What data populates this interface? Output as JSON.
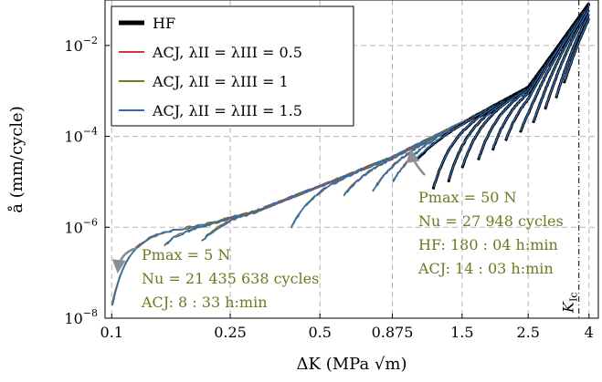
{
  "chart_data": {
    "type": "line",
    "x_scale": "log",
    "y_scale": "log",
    "xlabel": "ΔK (MPa √m)",
    "ylabel": "å (mm/cycle)",
    "xlim": [
      0.095,
      4.3
    ],
    "ylim": [
      1e-08,
      0.1
    ],
    "grid": true,
    "legend_position": "top-left",
    "x_ticks": [
      {
        "value": 0.1,
        "label": "0.1"
      },
      {
        "value": 0.25,
        "label": "0.25"
      },
      {
        "value": 0.5,
        "label": "0.5"
      },
      {
        "value": 0.875,
        "label": "0.875"
      },
      {
        "value": 1.5,
        "label": "1.5"
      },
      {
        "value": 2.5,
        "label": "2.5"
      },
      {
        "value": 4,
        "label": "4"
      }
    ],
    "y_ticks": [
      {
        "value": 1e-08,
        "base": "10",
        "exp": "−8"
      },
      {
        "value": 1e-06,
        "base": "10",
        "exp": "−6"
      },
      {
        "value": 0.0001,
        "base": "10",
        "exp": "−4"
      },
      {
        "value": 0.01,
        "base": "10",
        "exp": "−2"
      }
    ],
    "series": [
      {
        "name": "HF",
        "color": "#000000"
      },
      {
        "name": "ACJ, λII = λIII = 0.5",
        "color": "#d03a2a"
      },
      {
        "name": "ACJ, λII = λIII = 1",
        "color": "#6b7a1f"
      },
      {
        "name": "ACJ, λII = λIII = 1.5",
        "color": "#2f6db5"
      }
    ],
    "envelope": {
      "x": [
        0.1,
        0.2,
        0.3,
        0.5,
        0.875,
        1.5,
        2.5,
        3.5
      ],
      "y": [
        6e-07,
        1.1e-06,
        2.2e-06,
        8e-06,
        3.5e-05,
        0.0002,
        0.0012,
        0.025
      ]
    },
    "hf_start_points": {
      "x": [
        1.05,
        1.2,
        1.35,
        1.5,
        1.7,
        1.9,
        2.1,
        2.35,
        2.6,
        2.85,
        3.1,
        3.3
      ],
      "y": [
        3e-05,
        7e-06,
        1e-05,
        2e-05,
        3e-05,
        5e-05,
        8e-05,
        0.00012,
        0.0002,
        0.0004,
        0.0007,
        0.0015
      ]
    },
    "acj_start_points": {
      "x": [
        0.1,
        0.15,
        0.2,
        0.4,
        0.6,
        0.75,
        0.875,
        1.05
      ],
      "y": [
        2e-08,
        4e-07,
        5e-07,
        1e-06,
        5e-06,
        6e-06,
        1e-05,
        3e-05
      ]
    },
    "KIc_x": 3.7,
    "KIc_label": "K",
    "KIc_sub": "Ic",
    "annotations": [
      {
        "lines": [
          "Pmax = 50 N",
          "Nu = 27 948 cycles",
          "HF: 180 : 04 h:min",
          "ACJ: 14 : 03 h:min"
        ],
        "points_to": [
          1.05,
          3e-05
        ]
      },
      {
        "lines": [
          "Pmax = 5 N",
          "Nu = 21 435 638 cycles",
          "ACJ: 8 : 33 h:min"
        ],
        "points_to": [
          0.1,
          2e-08
        ]
      }
    ]
  }
}
